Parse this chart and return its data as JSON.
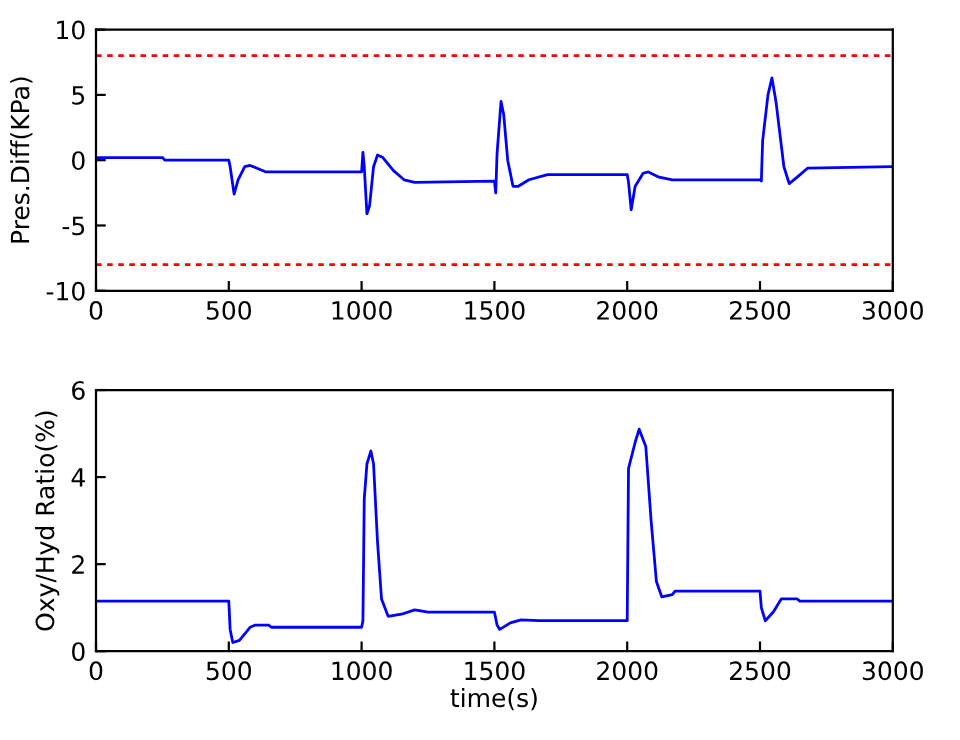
{
  "chart_data": [
    {
      "type": "line",
      "ylabel": "Pres.Diff(KPa)",
      "xlim": [
        0,
        3000
      ],
      "xticks": [
        0,
        500,
        1000,
        1500,
        2000,
        2500,
        3000
      ],
      "ylim": [
        -10,
        10
      ],
      "yticks": [
        -10,
        -5,
        0,
        5,
        10
      ],
      "grid": false,
      "legend": false,
      "ref_lines": [
        {
          "axis": "y",
          "value": 8,
          "color": "#ff0000",
          "line_style": "dashed"
        },
        {
          "axis": "y",
          "value": -8,
          "color": "#ff0000",
          "line_style": "dashed"
        }
      ],
      "series": [
        {
          "color": "#0000ff",
          "x": [
            0,
            250,
            260,
            500,
            505,
            520,
            535,
            560,
            580,
            640,
            1000,
            1005,
            1010,
            1020,
            1030,
            1045,
            1060,
            1080,
            1120,
            1160,
            1200,
            1500,
            1505,
            1510,
            1525,
            1535,
            1550,
            1570,
            1590,
            1630,
            1700,
            2000,
            2005,
            2015,
            2030,
            2060,
            2080,
            2120,
            2170,
            2500,
            2505,
            2510,
            2530,
            2545,
            2560,
            2590,
            2610,
            2640,
            2680,
            3000
          ],
          "values": [
            0.2,
            0.2,
            0.0,
            0.0,
            -0.5,
            -2.6,
            -1.5,
            -0.5,
            -0.4,
            -0.9,
            -0.9,
            0.6,
            -0.5,
            -4.1,
            -3.5,
            -0.5,
            0.4,
            0.2,
            -0.8,
            -1.5,
            -1.7,
            -1.6,
            -2.5,
            0.5,
            4.5,
            3.5,
            0.0,
            -2.0,
            -2.0,
            -1.5,
            -1.1,
            -1.1,
            -1.7,
            -3.8,
            -2.0,
            -1.0,
            -0.9,
            -1.3,
            -1.5,
            -1.5,
            -1.6,
            1.5,
            5.0,
            6.3,
            4.5,
            -0.5,
            -1.8,
            -1.3,
            -0.6,
            -0.5
          ]
        }
      ]
    },
    {
      "type": "line",
      "ylabel": "Oxy/Hyd Ratio(%)",
      "xlabel": "time(s)",
      "xlim": [
        0,
        3000
      ],
      "xticks": [
        0,
        500,
        1000,
        1500,
        2000,
        2500,
        3000
      ],
      "ylim": [
        0,
        6
      ],
      "yticks": [
        0,
        2,
        4,
        6
      ],
      "grid": false,
      "legend": false,
      "series": [
        {
          "color": "#0000ff",
          "x": [
            0,
            500,
            505,
            515,
            540,
            580,
            600,
            650,
            660,
            1000,
            1005,
            1010,
            1020,
            1035,
            1045,
            1060,
            1075,
            1100,
            1150,
            1200,
            1250,
            1500,
            1510,
            1520,
            1560,
            1600,
            1670,
            2000,
            2005,
            2030,
            2045,
            2070,
            2090,
            2110,
            2130,
            2170,
            2180,
            2500,
            2505,
            2520,
            2550,
            2580,
            2640,
            2650,
            3000
          ],
          "values": [
            1.15,
            1.15,
            0.5,
            0.2,
            0.25,
            0.55,
            0.6,
            0.6,
            0.55,
            0.55,
            0.7,
            3.5,
            4.3,
            4.6,
            4.3,
            2.5,
            1.2,
            0.8,
            0.85,
            0.95,
            0.9,
            0.9,
            0.6,
            0.5,
            0.65,
            0.72,
            0.7,
            0.7,
            4.2,
            4.8,
            5.1,
            4.7,
            3.0,
            1.6,
            1.25,
            1.3,
            1.38,
            1.38,
            1.0,
            0.7,
            0.9,
            1.2,
            1.2,
            1.15,
            1.15
          ]
        }
      ]
    }
  ]
}
